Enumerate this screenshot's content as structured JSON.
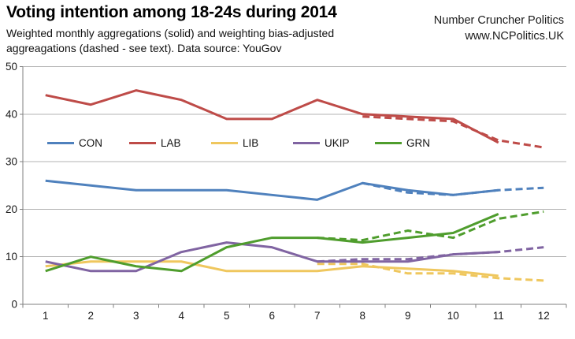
{
  "header": {
    "title": "Voting intention among 18-24s during 2014",
    "subtitle_line1": "Weighted monthly aggregations (solid) and weighting bias-adjusted",
    "subtitle_line2": "aggreagations (dashed - see text). Data source: YouGov",
    "brand_line1": "Number Cruncher Politics",
    "brand_line2": "www.NCPolitics.UK"
  },
  "chart_data": {
    "type": "line",
    "title": "Voting intention among 18-24s during 2014",
    "x": [
      1,
      2,
      3,
      4,
      5,
      6,
      7,
      8,
      9,
      10,
      11,
      12
    ],
    "xlabel": "",
    "ylabel": "",
    "ylim": [
      0,
      50
    ],
    "y_ticks": [
      0,
      10,
      20,
      30,
      40,
      50
    ],
    "grid": true,
    "legend_position": "inside-upper-left-row",
    "legend": [
      {
        "label": "CON",
        "color": "#4F81BD"
      },
      {
        "label": "LAB",
        "color": "#BE4B48"
      },
      {
        "label": "LIB",
        "color": "#EFC75E"
      },
      {
        "label": "UKIP",
        "color": "#8064A2"
      },
      {
        "label": "GRN",
        "color": "#4F9D2D"
      }
    ],
    "series": [
      {
        "name": "CON",
        "style": "solid",
        "color": "#4F81BD",
        "values": [
          26,
          25,
          24,
          24,
          24,
          23,
          22,
          25.5,
          24,
          23,
          24,
          null
        ]
      },
      {
        "name": "CON bias-adjusted",
        "style": "dashed",
        "color": "#4F81BD",
        "values": [
          null,
          null,
          null,
          null,
          null,
          null,
          null,
          25.5,
          23.5,
          23,
          24,
          24.5
        ]
      },
      {
        "name": "LAB",
        "style": "solid",
        "color": "#BE4B48",
        "values": [
          44,
          42,
          45,
          43,
          39,
          39,
          43,
          40,
          39.5,
          39,
          34,
          null
        ]
      },
      {
        "name": "LAB bias-adjusted",
        "style": "dashed",
        "color": "#BE4B48",
        "values": [
          null,
          null,
          null,
          null,
          null,
          null,
          null,
          39.5,
          39,
          38.5,
          34.5,
          33
        ]
      },
      {
        "name": "LIB",
        "style": "solid",
        "color": "#EFC75E",
        "values": [
          8,
          9,
          9,
          9,
          7,
          7,
          7,
          8,
          7.5,
          7,
          6,
          null
        ]
      },
      {
        "name": "LIB bias-adjusted",
        "style": "dashed",
        "color": "#EFC75E",
        "values": [
          null,
          null,
          null,
          null,
          null,
          null,
          8.5,
          8.5,
          6.5,
          6.5,
          5.5,
          5
        ]
      },
      {
        "name": "UKIP",
        "style": "solid",
        "color": "#8064A2",
        "values": [
          9,
          7,
          7,
          11,
          13,
          12,
          9,
          9,
          9,
          10.5,
          11,
          null
        ]
      },
      {
        "name": "UKIP bias-adjusted",
        "style": "dashed",
        "color": "#8064A2",
        "values": [
          null,
          null,
          null,
          null,
          null,
          null,
          9,
          9.5,
          9.5,
          10.5,
          11,
          12
        ]
      },
      {
        "name": "GRN",
        "style": "solid",
        "color": "#4F9D2D",
        "values": [
          7,
          10,
          8,
          7,
          12,
          14,
          14,
          13,
          14,
          15,
          19,
          null
        ]
      },
      {
        "name": "GRN bias-adjusted",
        "style": "dashed",
        "color": "#4F9D2D",
        "values": [
          null,
          null,
          null,
          null,
          null,
          null,
          14,
          13.5,
          15.5,
          14,
          18,
          19.5
        ]
      }
    ]
  },
  "colors": {
    "grid": "#B3B3B3",
    "axis": "#7F7F7F",
    "tick_label": "#1a1a1a"
  }
}
